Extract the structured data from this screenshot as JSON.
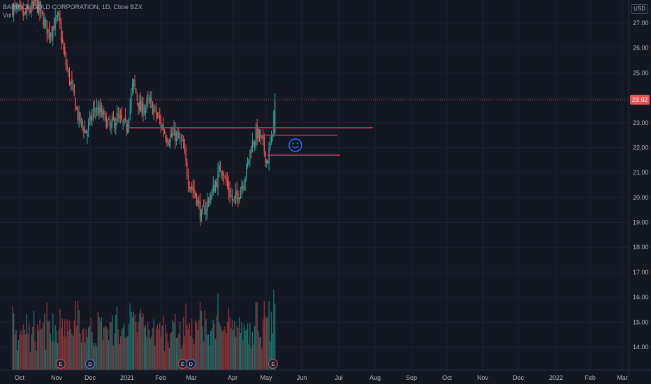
{
  "legend": {
    "symbol": "BARRICK GOLD CORPORATION",
    "interval": "1D",
    "exchange": "Cboe BZX",
    "volume_label": "Vol"
  },
  "currency": "USD",
  "colors": {
    "background": "#131722",
    "grid": "#1e2230",
    "up": "#26a69a",
    "down": "#ef5350",
    "up_volume": "#1f6f6a",
    "down_volume": "#8b3238",
    "drawing": "#e91e63",
    "price_line": "#ef5350",
    "smiley": "#2962ff",
    "axis_text": "#b2b5be"
  },
  "chart_data": {
    "type": "candlestick",
    "title": "BARRICK GOLD CORPORATION, 1D, Cboe BZX",
    "x_tick_labels": [
      "Oct",
      "Nov",
      "Dec",
      "2021",
      "Feb",
      "Mar",
      "Apr",
      "May",
      "Jun",
      "Jul",
      "Aug",
      "Sep",
      "Oct",
      "Nov",
      "Dec",
      "2022",
      "Feb",
      "Mar"
    ],
    "y_tick_labels": [
      "14.00",
      "15.00",
      "16.00",
      "17.00",
      "18.00",
      "19.00",
      "20.00",
      "21.00",
      "22.00",
      "23.00",
      "24.00",
      "25.00",
      "26.00",
      "27.00"
    ],
    "ylim": [
      13.3,
      27.5
    ],
    "last_price": 23.92,
    "last_price_label": "23.92",
    "price_trend": [
      {
        "date": "2020-09-25",
        "close": 27.6
      },
      {
        "date": "2020-10-05",
        "close": 27.3
      },
      {
        "date": "2020-10-15",
        "close": 27.8
      },
      {
        "date": "2020-10-26",
        "close": 26.6
      },
      {
        "date": "2020-11-03",
        "close": 27.2
      },
      {
        "date": "2020-11-09",
        "close": 25.4
      },
      {
        "date": "2020-11-16",
        "close": 24.1
      },
      {
        "date": "2020-11-20",
        "close": 23.2
      },
      {
        "date": "2020-11-27",
        "close": 22.6
      },
      {
        "date": "2020-12-04",
        "close": 23.6
      },
      {
        "date": "2020-12-11",
        "close": 23.3
      },
      {
        "date": "2020-12-17",
        "close": 22.8
      },
      {
        "date": "2020-12-23",
        "close": 23.2
      },
      {
        "date": "2020-12-31",
        "close": 22.8
      },
      {
        "date": "2021-01-06",
        "close": 24.6
      },
      {
        "date": "2021-01-12",
        "close": 23.5
      },
      {
        "date": "2021-01-20",
        "close": 23.8
      },
      {
        "date": "2021-01-28",
        "close": 23.1
      },
      {
        "date": "2021-02-04",
        "close": 22.4
      },
      {
        "date": "2021-02-11",
        "close": 22.5
      },
      {
        "date": "2021-02-17",
        "close": 22.1
      },
      {
        "date": "2021-02-22",
        "close": 20.7
      },
      {
        "date": "2021-03-01",
        "close": 20.0
      },
      {
        "date": "2021-03-05",
        "close": 19.2
      },
      {
        "date": "2021-03-10",
        "close": 19.8
      },
      {
        "date": "2021-03-16",
        "close": 20.4
      },
      {
        "date": "2021-03-22",
        "close": 21.3
      },
      {
        "date": "2021-03-26",
        "close": 20.6
      },
      {
        "date": "2021-04-01",
        "close": 19.8
      },
      {
        "date": "2021-04-06",
        "close": 20.2
      },
      {
        "date": "2021-04-12",
        "close": 21.0
      },
      {
        "date": "2021-04-16",
        "close": 22.0
      },
      {
        "date": "2021-04-21",
        "close": 22.6
      },
      {
        "date": "2021-04-26",
        "close": 22.2
      },
      {
        "date": "2021-04-30",
        "close": 21.4
      },
      {
        "date": "2021-05-04",
        "close": 22.4
      },
      {
        "date": "2021-05-06",
        "close": 23.6
      },
      {
        "date": "2021-05-07",
        "close": 23.92
      }
    ],
    "volume_trend": "higher volume on the sharp moves; tallest bars mid-Nov 2020 and early May 2021",
    "event_markers": [
      {
        "date": "2020-11-05",
        "label": "E"
      },
      {
        "date": "2020-11-30",
        "label": "D"
      },
      {
        "date": "2021-02-17",
        "label": "E"
      },
      {
        "date": "2021-02-24",
        "label": "D"
      },
      {
        "date": "2021-05-05",
        "label": "E"
      }
    ],
    "drawings": [
      {
        "type": "horizontal_segment",
        "price": 22.8,
        "from": "2020-12-31",
        "to": "2021-07-29"
      },
      {
        "type": "horizontal_segment",
        "price": 22.5,
        "from": "2021-04-26",
        "to": "2021-06-29"
      },
      {
        "type": "horizontal_segment",
        "price": 21.7,
        "from": "2021-04-30",
        "to": "2021-07-01"
      },
      {
        "type": "smiley_icon",
        "date": "2021-05-24",
        "price": 22.1
      }
    ]
  }
}
